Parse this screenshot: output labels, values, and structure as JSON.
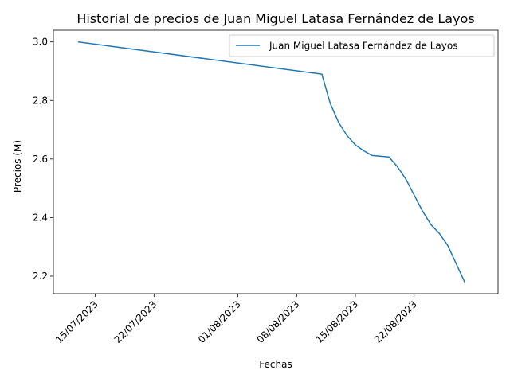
{
  "chart_data": {
    "type": "line",
    "title": "Historial de precios de Juan Miguel Latasa Fernández de Layos",
    "xlabel": "Fechas",
    "ylabel": "Precios (M)",
    "x_ticks": [
      "15/07/2023",
      "22/07/2023",
      "01/08/2023",
      "08/08/2023",
      "15/08/2023",
      "22/08/2023"
    ],
    "y_ticks": [
      "2.2",
      "2.4",
      "2.6",
      "2.8",
      "3.0"
    ],
    "ylim": [
      2.14,
      3.04
    ],
    "xlim": [
      "2023-07-10",
      "2023-09-01"
    ],
    "grid": false,
    "legend_position": "top-right",
    "series": [
      {
        "name": "Juan Miguel Latasa Fernández de Layos",
        "color": "#1f77b4",
        "points": [
          {
            "x": "2023-07-13",
            "y": 3.0
          },
          {
            "x": "2023-08-11",
            "y": 2.89
          },
          {
            "x": "2023-08-12",
            "y": 2.79
          },
          {
            "x": "2023-08-13",
            "y": 2.725
          },
          {
            "x": "2023-08-14",
            "y": 2.68
          },
          {
            "x": "2023-08-15",
            "y": 2.648
          },
          {
            "x": "2023-08-16",
            "y": 2.628
          },
          {
            "x": "2023-08-17",
            "y": 2.612
          },
          {
            "x": "2023-08-19",
            "y": 2.607
          },
          {
            "x": "2023-08-20",
            "y": 2.574
          },
          {
            "x": "2023-08-21",
            "y": 2.532
          },
          {
            "x": "2023-08-22",
            "y": 2.477
          },
          {
            "x": "2023-08-23",
            "y": 2.422
          },
          {
            "x": "2023-08-24",
            "y": 2.376
          },
          {
            "x": "2023-08-25",
            "y": 2.346
          },
          {
            "x": "2023-08-26",
            "y": 2.305
          },
          {
            "x": "2023-08-27",
            "y": 2.243
          },
          {
            "x": "2023-08-28",
            "y": 2.181
          }
        ]
      }
    ]
  }
}
